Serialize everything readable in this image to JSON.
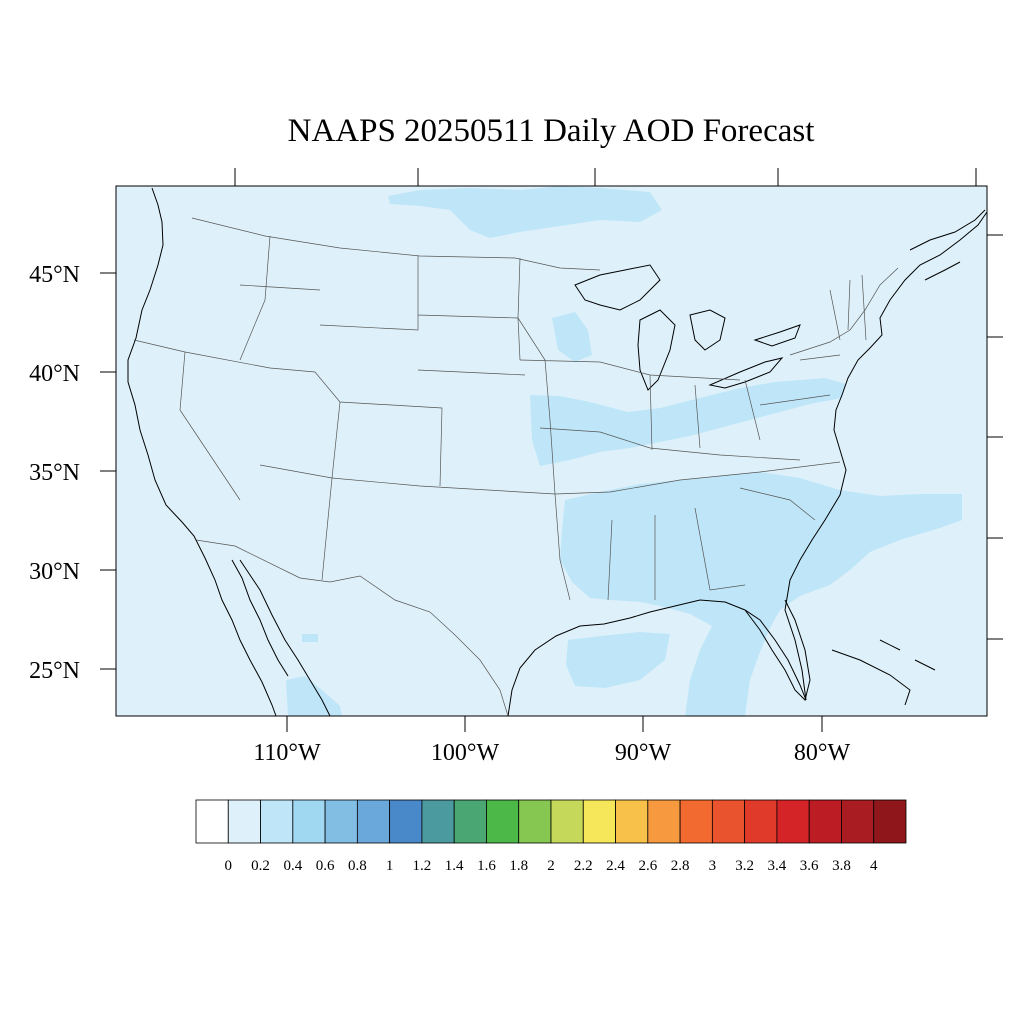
{
  "title": "NAAPS 20250511 Daily AOD Forecast",
  "lat_labels": [
    "45°N",
    "40°N",
    "35°N",
    "30°N",
    "25°N"
  ],
  "lon_labels": [
    "110°W",
    "100°W",
    "90°W",
    "80°W"
  ],
  "colorbar": {
    "labels": [
      "0",
      "0.2",
      "0.4",
      "0.6",
      "0.8",
      "1",
      "1.2",
      "1.4",
      "1.6",
      "1.8",
      "2",
      "2.2",
      "2.4",
      "2.6",
      "2.8",
      "3",
      "3.2",
      "3.4",
      "3.6",
      "3.8",
      "4"
    ],
    "colors": [
      "#ffffff",
      "#def1fa",
      "#bfe6f8",
      "#a0d8f2",
      "#82bee4",
      "#6aa7da",
      "#4a89c9",
      "#4a9aa0",
      "#4aa673",
      "#4bb848",
      "#86c751",
      "#c5d859",
      "#f6e75a",
      "#f7c14a",
      "#f6993f",
      "#f26a30",
      "#e9532d",
      "#df3a2a",
      "#d42428",
      "#bc1d25",
      "#a91c22",
      "#8f171c"
    ]
  },
  "colors": {
    "background_aod": "#def1fa",
    "plume_aod": "#bfe6f8"
  }
}
